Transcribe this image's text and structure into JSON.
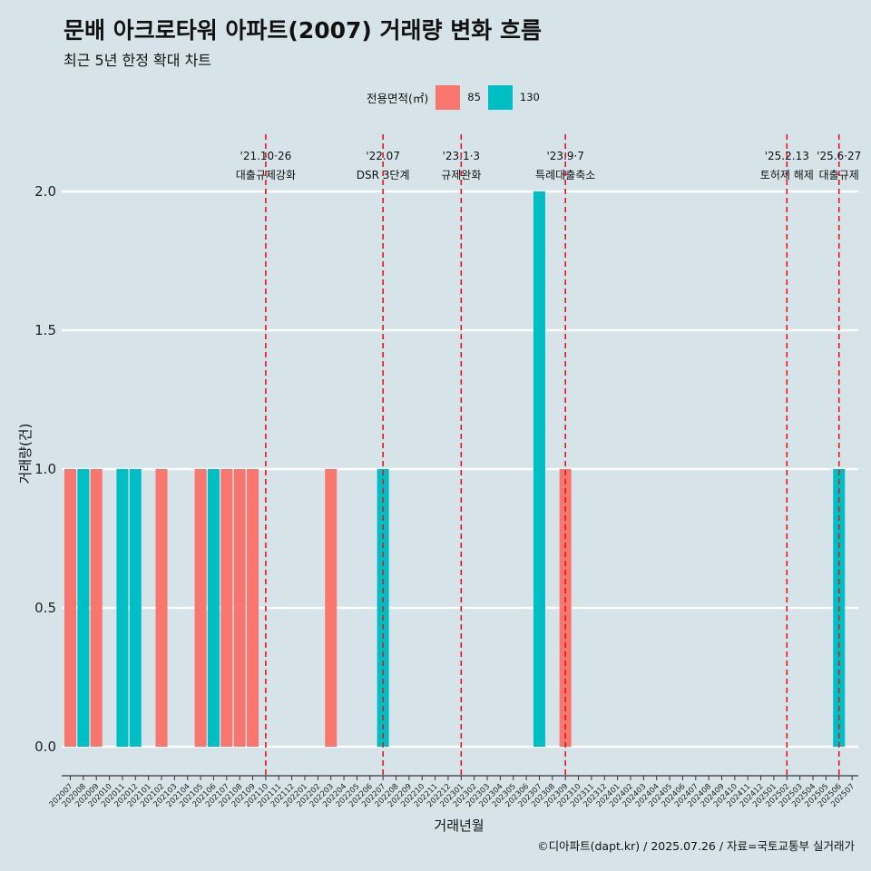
{
  "title": "문배 아크로타워 아파트(2007) 거래량 변화 흐름",
  "subtitle": "최근 5년 한정 확대 차트",
  "caption": "©디아파트(dapt.kr) / 2025.07.26 / 자료=국토교통부 실거래가",
  "legend": {
    "title": "전용면적(㎡)",
    "items": [
      {
        "label": "85",
        "color": "#f8766d"
      },
      {
        "label": "130",
        "color": "#00bfc4"
      }
    ]
  },
  "chart_data": {
    "type": "bar",
    "xlabel": "거래년월",
    "ylabel": "거래량(건)",
    "ylim": [
      0,
      2
    ],
    "yticks": [
      "0.0",
      "0.5",
      "1.0",
      "1.5",
      "2.0"
    ],
    "grid": "horizontal",
    "legend_position": "top",
    "categories": [
      "202007",
      "202008",
      "202009",
      "202010",
      "202011",
      "202012",
      "202101",
      "202102",
      "202103",
      "202104",
      "202105",
      "202106",
      "202107",
      "202108",
      "202109",
      "202110",
      "202111",
      "202112",
      "202201",
      "202202",
      "202203",
      "202204",
      "202205",
      "202206",
      "202207",
      "202208",
      "202209",
      "202210",
      "202211",
      "202212",
      "202301",
      "202302",
      "202303",
      "202304",
      "202305",
      "202306",
      "202307",
      "202308",
      "202309",
      "202310",
      "202311",
      "202312",
      "202401",
      "202402",
      "202403",
      "202404",
      "202405",
      "202406",
      "202407",
      "202408",
      "202409",
      "202410",
      "202411",
      "202412",
      "202501",
      "202502",
      "202503",
      "202504",
      "202505",
      "202506",
      "202507"
    ],
    "series": [
      {
        "name": "85",
        "color": "#f8766d",
        "points": [
          {
            "x": "202007",
            "y": 1
          },
          {
            "x": "202009",
            "y": 1
          },
          {
            "x": "202102",
            "y": 1
          },
          {
            "x": "202105",
            "y": 1
          },
          {
            "x": "202107",
            "y": 1
          },
          {
            "x": "202108",
            "y": 1
          },
          {
            "x": "202109",
            "y": 1
          },
          {
            "x": "202203",
            "y": 1
          },
          {
            "x": "202309",
            "y": 1
          }
        ]
      },
      {
        "name": "130",
        "color": "#00bfc4",
        "points": [
          {
            "x": "202008",
            "y": 1
          },
          {
            "x": "202011",
            "y": 1
          },
          {
            "x": "202012",
            "y": 1
          },
          {
            "x": "202106",
            "y": 1
          },
          {
            "x": "202207",
            "y": 1
          },
          {
            "x": "202307",
            "y": 2
          },
          {
            "x": "202506",
            "y": 1
          }
        ]
      }
    ],
    "annotations": [
      {
        "date": "'21.10·26",
        "label": "대출규제강화",
        "x": "202110"
      },
      {
        "date": "'22.07",
        "label": "DSR 3단계",
        "x": "202207"
      },
      {
        "date": "'23.1·3",
        "label": "규제완화",
        "x": "202301"
      },
      {
        "date": "'23.9·7",
        "label": "특례대출축소",
        "x": "202309"
      },
      {
        "date": "'25.2.13",
        "label": "토허제 해제",
        "x": "202502"
      },
      {
        "date": "'25.6·27",
        "label": "대출규제",
        "x": "202506"
      }
    ]
  }
}
